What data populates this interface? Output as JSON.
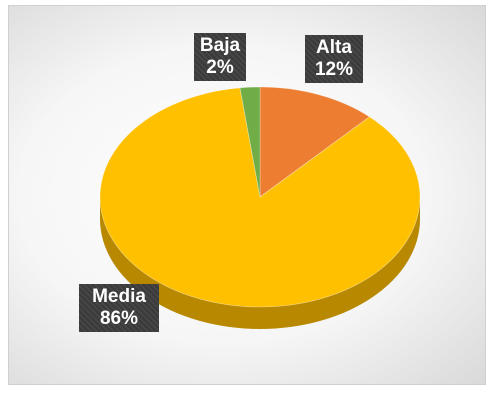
{
  "chart_data": {
    "type": "pie",
    "style": "3d",
    "legend": "none",
    "categories": [
      "Alta",
      "Media",
      "Baja"
    ],
    "values": [
      12,
      86,
      2
    ],
    "labels": [
      {
        "category": "Alta",
        "percent": "12%"
      },
      {
        "category": "Media",
        "percent": "86%"
      },
      {
        "category": "Baja",
        "percent": "2%"
      }
    ],
    "colors": {
      "Alta": "#ED7D31",
      "Media": "#FFC000",
      "Baja": "#70AD47"
    },
    "side_colors": {
      "Alta": "#B4551A",
      "Media": "#B88800",
      "Baja": "#4E7F2F"
    }
  }
}
